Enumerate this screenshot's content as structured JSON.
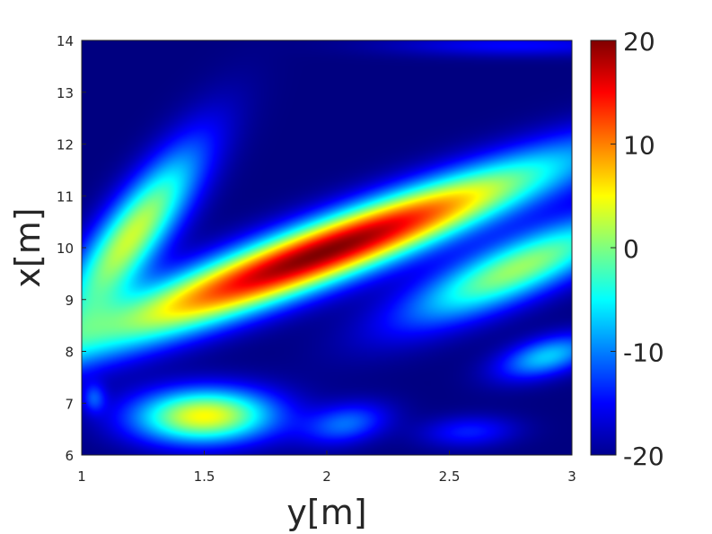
{
  "chart_data": {
    "type": "heatmap",
    "title": "",
    "xlabel": "y[m]",
    "ylabel": "x[m]",
    "xlim": [
      1,
      3
    ],
    "ylim": [
      6,
      14
    ],
    "xticks": [
      "1",
      "1.5",
      "2",
      "2.5",
      "3"
    ],
    "yticks": [
      "6",
      "7",
      "8",
      "9",
      "10",
      "11",
      "12",
      "13",
      "14"
    ],
    "colormap": "jet",
    "clim": [
      -20,
      20
    ],
    "colorbar_ticks": [
      "-20",
      "-10",
      "0",
      "10",
      "20"
    ],
    "grid": false,
    "features": [
      {
        "kind": "peak",
        "center": [
          1.98,
          9.9
        ],
        "value": 17
      },
      {
        "kind": "lobe",
        "center": [
          1.2,
          10.2
        ],
        "value": 2
      },
      {
        "kind": "lobe",
        "center": [
          1.5,
          6.75
        ],
        "value": 4
      },
      {
        "kind": "lobe",
        "center": [
          2.78,
          9.6
        ],
        "value": 0
      },
      {
        "kind": "lobe",
        "center": [
          2.9,
          7.9
        ],
        "value": -8
      },
      {
        "kind": "lobe",
        "center": [
          2.08,
          6.6
        ],
        "value": -12
      },
      {
        "kind": "lobe",
        "center": [
          2.58,
          6.45
        ],
        "value": -15
      },
      {
        "kind": "lobe",
        "center": [
          1.05,
          7.1
        ],
        "value": -14
      },
      {
        "kind": "lobe",
        "center": [
          2.78,
          13.9
        ],
        "value": -16
      }
    ]
  }
}
